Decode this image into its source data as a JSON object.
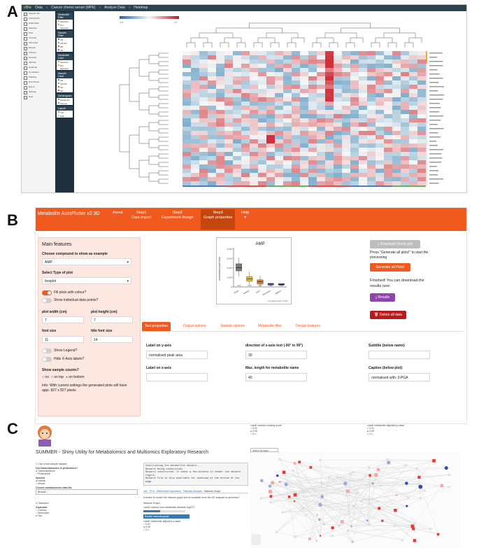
{
  "labels": {
    "a": "A",
    "b": "B",
    "c": "C"
  },
  "panelA": {
    "topbar": {
      "logo": "cBio",
      "crumbs": [
        "Data",
        "Cancer chemo serum (MPE)",
        "Analyze Data",
        "Heatmap"
      ]
    },
    "sidebar_items": [
      "Sample Info",
      "Clinical Info",
      "Peak Table",
      "Samples",
      "PCA",
      "PLS-DA",
      "OPLS-DA",
      "Boxplot",
      "Volcano",
      "Network",
      "ANOVA",
      "Heatmap",
      "Correlation",
      "Pathway",
      "Enrichment",
      "Export",
      "Settings",
      "Help"
    ],
    "filter_boxes": [
      {
        "title": "Metabolite Filter",
        "rows": [
          {
            "label": "Selected",
            "color": "#f3a43b"
          },
          {
            "label": "Not Selected",
            "color": "#f3a43b"
          }
        ]
      },
      {
        "title": "Sample Filter",
        "rows": [
          {
            "label": "CR",
            "color": "#4b7fc4"
          },
          {
            "label": "CR-PD",
            "color": "#6bb35d"
          },
          {
            "label": "PD",
            "color": "#d9534f"
          },
          {
            "label": "SD",
            "color": "#9b59b6"
          }
        ]
      },
      {
        "title": "Metabolite Color",
        "rows": [
          {
            "label": "Selected",
            "color": "#f3a43b"
          },
          {
            "label": "Not Selected",
            "color": "#f3a43b"
          }
        ]
      },
      {
        "title": "Sample Color",
        "rows": [
          {
            "label": "CR",
            "color": "#4b7fc4"
          },
          {
            "label": "CR-PD",
            "color": "#6bb35d"
          },
          {
            "label": "PD",
            "color": "#d9534f"
          },
          {
            "label": "SD",
            "color": "#9b59b6"
          }
        ]
      },
      {
        "title": "Dendrogram",
        "rows": [
          {
            "label": "Metabolite",
            "color": "#6bb35d"
          },
          {
            "label": "Sample",
            "color": "#6bb35d"
          }
        ]
      },
      {
        "title": "Layout",
        "rows": [
          {
            "label": "Full",
            "color": "#6bb35d"
          },
          {
            "label": "Half",
            "color": "#cccccc"
          }
        ]
      }
    ],
    "legend": {
      "low": "-2.5",
      "high": "2.5"
    }
  },
  "panelB": {
    "brand": "Metabolite AutoPlotter v2.3D",
    "nav": [
      {
        "line1": "About",
        "line2": ""
      },
      {
        "line1": "Step1",
        "line2": "Data import"
      },
      {
        "line1": "Step2",
        "line2": "Experiment design"
      },
      {
        "line1": "Step3",
        "line2": "Graph properties"
      },
      {
        "line1": "Help",
        "line2": "▾"
      }
    ],
    "main_features": "Main features",
    "compound_label": "Choose compound to show as example",
    "compound_value": "AMP",
    "plot_type_label": "Select Type of plot",
    "plot_type_value": "boxplot",
    "fill_label": "Fill plots with colour?",
    "points_label": "Show individual data points?",
    "width_label": "plot width (cm)",
    "width_value": "7",
    "height_label": "plot height (cm)",
    "height_value": "7",
    "font_label": "font size",
    "font_value": "11",
    "title_font_label": "title font size",
    "title_font_value": "14",
    "legend_label": "Show Legend?",
    "hide_x_label": "Hide X-Axis labels?",
    "counts_label": "Show sample counts?",
    "counts_options": [
      "no",
      "on top",
      "on bottom"
    ],
    "info": "Info: With current settings the generated plots will have appr. 827 x 827 pixels",
    "plot": {
      "title": "AMP",
      "ylabel": "normalised peak area",
      "caption": "normalised with: 3-PGA"
    },
    "chart_data": {
      "type": "box",
      "title": "AMP",
      "ylabel": "normalised peak area",
      "ytick_labels": [
        "0",
        "1×10⁵",
        "2×10⁵",
        "3×10⁵",
        "4×10⁵"
      ],
      "ylim": [
        0,
        400000
      ],
      "categories": [
        "Brain",
        "Kidney",
        "Liver",
        "Pancreas",
        "Spleen"
      ],
      "counts": [
        "n=10",
        "n=10",
        "n=10",
        "n=10",
        "n=10"
      ],
      "colors": [
        "#7a7a7a",
        "#f1c40f",
        "#e67e22",
        "#6a5acd",
        "#2e2a8f"
      ],
      "q1": [
        170000,
        60000,
        30000,
        20000,
        20000
      ],
      "median": [
        205000,
        85000,
        55000,
        30000,
        28000
      ],
      "q3": [
        245000,
        110000,
        75000,
        38000,
        34000
      ],
      "min": [
        110000,
        20000,
        5000,
        10000,
        12000
      ],
      "max": [
        310000,
        165000,
        120000,
        45000,
        40000
      ]
    },
    "download_demo": "Download Demo plot",
    "press_text": "Press \"Generate all plots!\" to start the processing",
    "generate": "Generate all Plots!",
    "finished": "Finished! You can download the results now.",
    "results": "Results",
    "delete": "Delete all data",
    "tabs": [
      "Text properties",
      "Output options",
      "Statistic options",
      "Metabolite filter",
      "Design features"
    ],
    "fields": [
      {
        "label": "Label on y-axis",
        "value": "normalised peak area"
      },
      {
        "label": "direction of x-axis text (-90° to 90°)",
        "value": "30"
      },
      {
        "label": "Subtitle (below name)",
        "value": ""
      },
      {
        "label": "Label on x-axis",
        "value": ""
      },
      {
        "label": "Max. length for metabolite name",
        "value": "40"
      },
      {
        "label": "Caption (below plot)",
        "value": "normalised with: 3-PGA"
      }
    ]
  },
  "panelC": {
    "title": "SUMMER - Shiny Utility for Metabolomics and Multiomics Exploratory Research",
    "cutoff1": "cutoff: reaction ranking score",
    "cutoff1_opts": [
      "0.01",
      "0.05",
      "0.1"
    ],
    "cutoff2": "cutoff: metabolite adjusted p-value",
    "cutoff2_opts": [
      "0.01",
      "0.05",
      "0.1"
    ],
    "select_layer": "Select by layer",
    "left_lines": [
      "Use a test sample dataset",
      "Use transcriptomics or proteomics?",
      "Transcriptomics",
      "Proteomics",
      "Species",
      "Human",
      "Mouse",
      "Choose metabolomics data file",
      "Browse...",
      "Standard",
      "Separator",
      "Comma",
      "Semicolon",
      "Tab"
    ],
    "console": [
      "Constructing the metabolite network...",
      "Network being constructed.",
      "Network constructed. It takes a few minutes to render the network figure,",
      "Network file is also available for download at the bottom of the page."
    ],
    "mid_tabs": [
      "Info",
      "PCA",
      "Differential Expression",
      "Pathway Analysis",
      "Network Graph"
    ],
    "mid_text": "A button to render the network graph will be available once the DE analysis is performed.",
    "mid_labels": [
      "Network Graph",
      "cutoff: reaction and metabolite absolute log2FC",
      "cutoff: metabolite adjusted p-value",
      "0.01",
      "0.05",
      "0.1"
    ],
    "mid_highlight": "Render network graph"
  }
}
